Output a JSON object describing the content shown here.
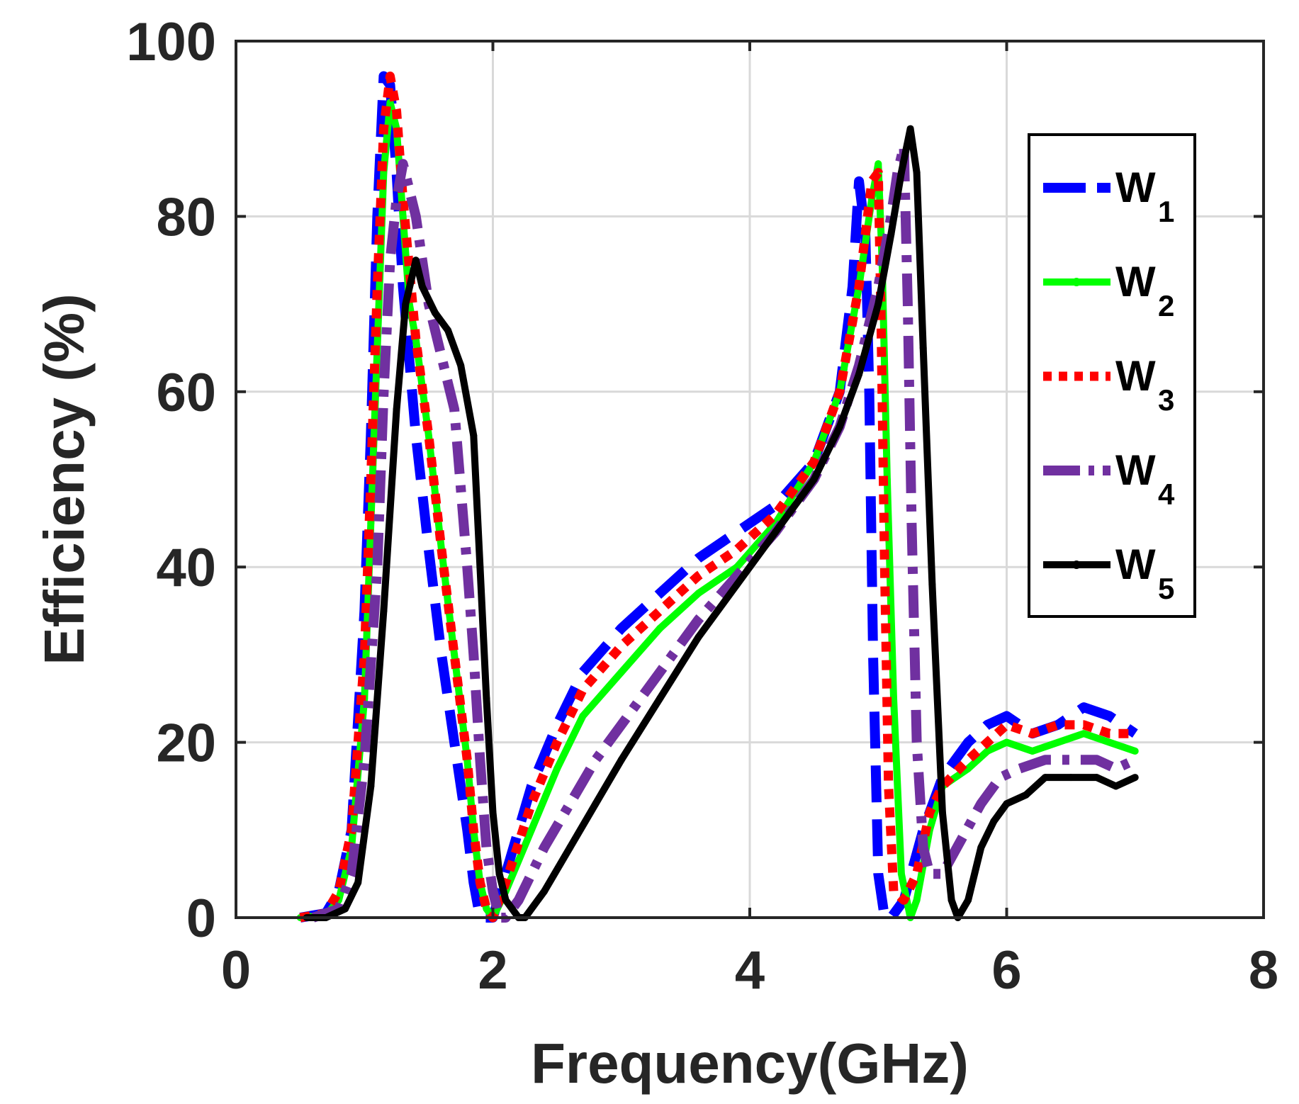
{
  "chart_data": {
    "type": "line",
    "title": "",
    "xlabel": "Frequency(GHz)",
    "ylabel": "Efficiency (%)",
    "xlim": [
      0,
      8
    ],
    "ylim": [
      0,
      100
    ],
    "xticks": [
      "0",
      "2",
      "4",
      "6",
      "8"
    ],
    "xtick_values": [
      0,
      2,
      4,
      6,
      8
    ],
    "yticks": [
      "0",
      "20",
      "40",
      "60",
      "80",
      "100"
    ],
    "ytick_values": [
      0,
      20,
      40,
      60,
      80,
      100
    ],
    "grid": true,
    "legend_position": "top-right",
    "series": [
      {
        "name": "W",
        "subscript": "1",
        "color": "#0000ff",
        "style": "dashed",
        "points": [
          [
            0.5,
            0
          ],
          [
            0.7,
            0.5
          ],
          [
            0.8,
            3
          ],
          [
            0.9,
            10
          ],
          [
            1.0,
            35
          ],
          [
            1.05,
            55
          ],
          [
            1.1,
            80
          ],
          [
            1.15,
            96
          ],
          [
            1.2,
            95
          ],
          [
            1.25,
            85
          ],
          [
            1.3,
            72
          ],
          [
            1.4,
            55
          ],
          [
            1.5,
            42
          ],
          [
            1.6,
            30
          ],
          [
            1.7,
            20
          ],
          [
            1.8,
            10
          ],
          [
            1.85,
            4
          ],
          [
            1.9,
            0
          ],
          [
            2.0,
            0
          ],
          [
            2.1,
            5
          ],
          [
            2.3,
            15
          ],
          [
            2.5,
            22
          ],
          [
            2.7,
            28
          ],
          [
            3.0,
            33
          ],
          [
            3.3,
            37
          ],
          [
            3.6,
            41
          ],
          [
            3.9,
            44
          ],
          [
            4.2,
            47
          ],
          [
            4.5,
            52
          ],
          [
            4.7,
            60
          ],
          [
            4.8,
            72
          ],
          [
            4.85,
            84
          ],
          [
            4.9,
            78
          ],
          [
            4.93,
            60
          ],
          [
            4.96,
            30
          ],
          [
            5.0,
            5
          ],
          [
            5.05,
            0
          ],
          [
            5.1,
            0
          ],
          [
            5.2,
            2
          ],
          [
            5.35,
            10
          ],
          [
            5.5,
            16
          ],
          [
            5.7,
            20
          ],
          [
            5.85,
            22
          ],
          [
            6.0,
            23
          ],
          [
            6.2,
            21
          ],
          [
            6.4,
            22
          ],
          [
            6.6,
            24
          ],
          [
            6.8,
            23
          ],
          [
            7.0,
            21
          ]
        ]
      },
      {
        "name": "W",
        "subscript": "2",
        "color": "#00ff00",
        "style": "solid",
        "points": [
          [
            0.5,
            0
          ],
          [
            0.7,
            0.3
          ],
          [
            0.8,
            2
          ],
          [
            0.9,
            8
          ],
          [
            1.0,
            25
          ],
          [
            1.05,
            45
          ],
          [
            1.1,
            65
          ],
          [
            1.15,
            85
          ],
          [
            1.2,
            93
          ],
          [
            1.25,
            90
          ],
          [
            1.3,
            80
          ],
          [
            1.35,
            70
          ],
          [
            1.4,
            66
          ],
          [
            1.5,
            55
          ],
          [
            1.6,
            42
          ],
          [
            1.7,
            30
          ],
          [
            1.8,
            18
          ],
          [
            1.85,
            10
          ],
          [
            1.9,
            4
          ],
          [
            1.95,
            1
          ],
          [
            2.0,
            0
          ],
          [
            2.1,
            3
          ],
          [
            2.3,
            10
          ],
          [
            2.5,
            17
          ],
          [
            2.7,
            23
          ],
          [
            3.0,
            28
          ],
          [
            3.3,
            33
          ],
          [
            3.6,
            37
          ],
          [
            3.9,
            40
          ],
          [
            4.2,
            45
          ],
          [
            4.5,
            52
          ],
          [
            4.7,
            60
          ],
          [
            4.85,
            72
          ],
          [
            4.95,
            82
          ],
          [
            5.0,
            86
          ],
          [
            5.03,
            75
          ],
          [
            5.07,
            50
          ],
          [
            5.12,
            25
          ],
          [
            5.18,
            5
          ],
          [
            5.25,
            0
          ],
          [
            5.3,
            2
          ],
          [
            5.4,
            10
          ],
          [
            5.5,
            15
          ],
          [
            5.7,
            17
          ],
          [
            5.85,
            19
          ],
          [
            6.0,
            20
          ],
          [
            6.2,
            19
          ],
          [
            6.4,
            20
          ],
          [
            6.6,
            21
          ],
          [
            6.8,
            20
          ],
          [
            7.0,
            19
          ]
        ]
      },
      {
        "name": "W",
        "subscript": "3",
        "color": "#ff0000",
        "style": "dotted",
        "points": [
          [
            0.5,
            0
          ],
          [
            0.7,
            0.5
          ],
          [
            0.8,
            3
          ],
          [
            0.9,
            10
          ],
          [
            1.0,
            30
          ],
          [
            1.05,
            50
          ],
          [
            1.1,
            72
          ],
          [
            1.15,
            90
          ],
          [
            1.2,
            96
          ],
          [
            1.25,
            92
          ],
          [
            1.3,
            82
          ],
          [
            1.4,
            66
          ],
          [
            1.5,
            55
          ],
          [
            1.6,
            42
          ],
          [
            1.7,
            30
          ],
          [
            1.8,
            18
          ],
          [
            1.85,
            10
          ],
          [
            1.9,
            4
          ],
          [
            1.95,
            1
          ],
          [
            2.0,
            0
          ],
          [
            2.1,
            4
          ],
          [
            2.3,
            13
          ],
          [
            2.5,
            20
          ],
          [
            2.7,
            26
          ],
          [
            3.0,
            31
          ],
          [
            3.3,
            35
          ],
          [
            3.6,
            39
          ],
          [
            3.9,
            42
          ],
          [
            4.2,
            46
          ],
          [
            4.5,
            52
          ],
          [
            4.7,
            60
          ],
          [
            4.85,
            72
          ],
          [
            4.95,
            84
          ],
          [
            5.0,
            85
          ],
          [
            5.02,
            70
          ],
          [
            5.05,
            40
          ],
          [
            5.08,
            15
          ],
          [
            5.12,
            3
          ],
          [
            5.2,
            2
          ],
          [
            5.3,
            5
          ],
          [
            5.4,
            12
          ],
          [
            5.5,
            15
          ],
          [
            5.7,
            18
          ],
          [
            5.85,
            20
          ],
          [
            6.0,
            22
          ],
          [
            6.2,
            21
          ],
          [
            6.4,
            22
          ],
          [
            6.6,
            22
          ],
          [
            6.8,
            21
          ],
          [
            7.0,
            21
          ]
        ]
      },
      {
        "name": "W",
        "subscript": "4",
        "color": "#7030a0",
        "style": "dashdot",
        "points": [
          [
            0.6,
            0
          ],
          [
            0.8,
            1
          ],
          [
            0.9,
            5
          ],
          [
            1.0,
            18
          ],
          [
            1.1,
            40
          ],
          [
            1.15,
            60
          ],
          [
            1.2,
            75
          ],
          [
            1.25,
            82
          ],
          [
            1.3,
            86
          ],
          [
            1.4,
            80
          ],
          [
            1.5,
            70
          ],
          [
            1.6,
            64
          ],
          [
            1.7,
            58
          ],
          [
            1.8,
            40
          ],
          [
            1.85,
            30
          ],
          [
            1.9,
            18
          ],
          [
            1.95,
            8
          ],
          [
            2.0,
            3
          ],
          [
            2.05,
            0
          ],
          [
            2.1,
            0
          ],
          [
            2.2,
            2
          ],
          [
            2.4,
            8
          ],
          [
            2.6,
            13
          ],
          [
            2.8,
            18
          ],
          [
            3.0,
            22
          ],
          [
            3.3,
            28
          ],
          [
            3.6,
            34
          ],
          [
            3.9,
            39
          ],
          [
            4.2,
            44
          ],
          [
            4.5,
            50
          ],
          [
            4.7,
            56
          ],
          [
            4.85,
            63
          ],
          [
            5.0,
            72
          ],
          [
            5.1,
            80
          ],
          [
            5.15,
            85
          ],
          [
            5.2,
            88
          ],
          [
            5.23,
            70
          ],
          [
            5.26,
            45
          ],
          [
            5.3,
            20
          ],
          [
            5.35,
            8
          ],
          [
            5.4,
            5
          ],
          [
            5.5,
            5
          ],
          [
            5.65,
            9
          ],
          [
            5.8,
            13
          ],
          [
            5.95,
            16
          ],
          [
            6.1,
            17
          ],
          [
            6.3,
            18
          ],
          [
            6.5,
            18
          ],
          [
            6.7,
            18
          ],
          [
            6.85,
            17
          ],
          [
            7.0,
            18
          ]
        ]
      },
      {
        "name": "W",
        "subscript": "5",
        "color": "#000000",
        "style": "solid-marker",
        "points": [
          [
            0.55,
            0
          ],
          [
            0.7,
            0
          ],
          [
            0.85,
            1
          ],
          [
            0.95,
            4
          ],
          [
            1.05,
            15
          ],
          [
            1.15,
            35
          ],
          [
            1.25,
            58
          ],
          [
            1.32,
            70
          ],
          [
            1.4,
            75
          ],
          [
            1.45,
            72
          ],
          [
            1.55,
            69
          ],
          [
            1.65,
            67
          ],
          [
            1.75,
            63
          ],
          [
            1.85,
            55
          ],
          [
            1.9,
            40
          ],
          [
            1.95,
            25
          ],
          [
            2.0,
            12
          ],
          [
            2.05,
            5
          ],
          [
            2.1,
            2
          ],
          [
            2.2,
            0
          ],
          [
            2.25,
            0
          ],
          [
            2.4,
            3
          ],
          [
            2.6,
            8
          ],
          [
            2.8,
            13
          ],
          [
            3.0,
            18
          ],
          [
            3.3,
            25
          ],
          [
            3.6,
            32
          ],
          [
            3.9,
            38
          ],
          [
            4.2,
            44
          ],
          [
            4.5,
            50
          ],
          [
            4.7,
            56
          ],
          [
            4.85,
            62
          ],
          [
            5.0,
            70
          ],
          [
            5.1,
            78
          ],
          [
            5.18,
            85
          ],
          [
            5.25,
            90
          ],
          [
            5.3,
            85
          ],
          [
            5.35,
            65
          ],
          [
            5.42,
            38
          ],
          [
            5.5,
            12
          ],
          [
            5.57,
            2
          ],
          [
            5.62,
            0
          ],
          [
            5.7,
            2
          ],
          [
            5.8,
            8
          ],
          [
            5.9,
            11
          ],
          [
            6.0,
            13
          ],
          [
            6.15,
            14
          ],
          [
            6.3,
            16
          ],
          [
            6.5,
            16
          ],
          [
            6.7,
            16
          ],
          [
            6.85,
            15
          ],
          [
            7.0,
            16
          ]
        ]
      }
    ]
  }
}
